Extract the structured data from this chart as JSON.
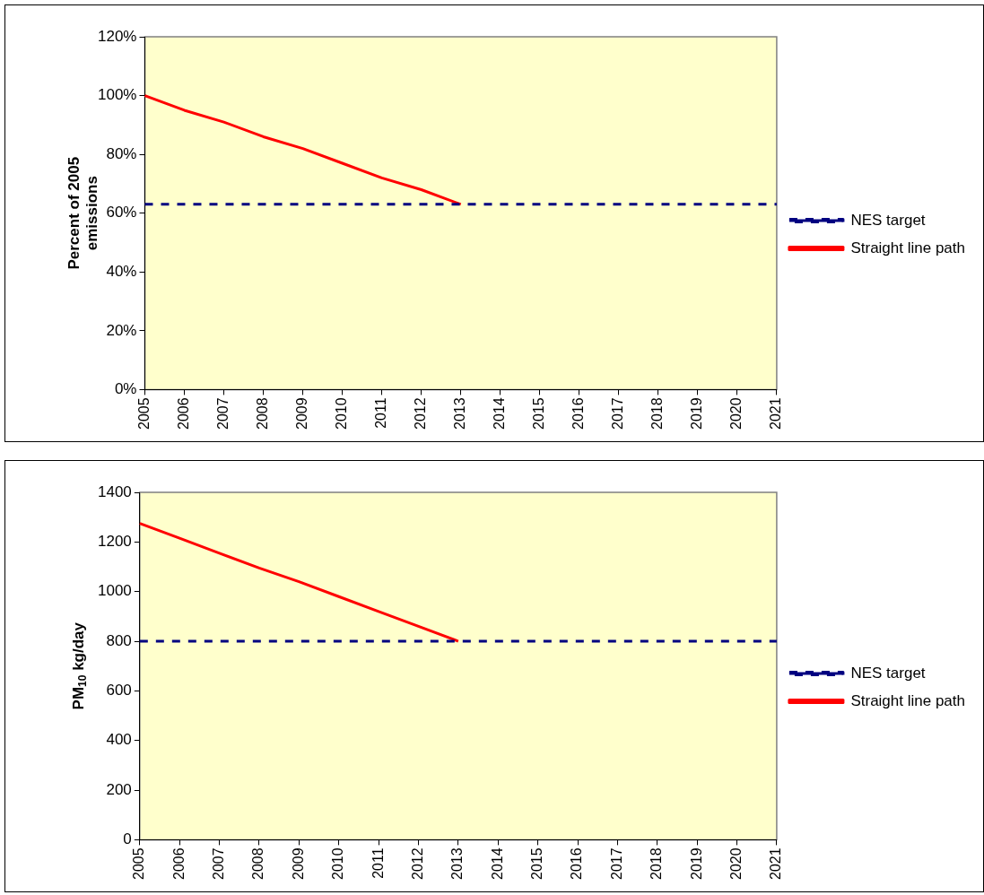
{
  "chart_data": [
    {
      "type": "line",
      "ylabel": "Percent of 2005 emissions",
      "categories": [
        "2005",
        "2006",
        "2007",
        "2008",
        "2009",
        "2010",
        "2011",
        "2012",
        "2013",
        "2014",
        "2015",
        "2016",
        "2017",
        "2018",
        "2019",
        "2020",
        "2021"
      ],
      "series": [
        {
          "name": "NES target",
          "color": "#000080",
          "line_style": "dashed",
          "values": [
            63,
            63,
            63,
            63,
            63,
            63,
            63,
            63,
            63,
            63,
            63,
            63,
            63,
            63,
            63,
            63,
            63
          ]
        },
        {
          "name": "Straight line path",
          "color": "#ff0000",
          "line_style": "solid",
          "values": [
            100,
            95,
            91,
            86,
            82,
            77,
            72,
            68,
            63,
            null,
            null,
            null,
            null,
            null,
            null,
            null,
            null
          ]
        }
      ],
      "ylim": [
        0,
        120
      ],
      "yticks": [
        {
          "value": 0,
          "label": "0%"
        },
        {
          "value": 20,
          "label": "20%"
        },
        {
          "value": 40,
          "label": "40%"
        },
        {
          "value": 60,
          "label": "60%"
        },
        {
          "value": 80,
          "label": "80%"
        },
        {
          "value": 100,
          "label": "100%"
        },
        {
          "value": 120,
          "label": "120%"
        }
      ],
      "grid": false,
      "legend": "right",
      "marker": "none"
    },
    {
      "type": "line",
      "ylabel": "PM$_{10}$ kg/day",
      "categories": [
        "2005",
        "2006",
        "2007",
        "2008",
        "2009",
        "2010",
        "2011",
        "2012",
        "2013",
        "2014",
        "2015",
        "2016",
        "2017",
        "2018",
        "2019",
        "2020",
        "2021"
      ],
      "series": [
        {
          "name": "NES target",
          "color": "#000080",
          "line_style": "dashed",
          "values": [
            800,
            800,
            800,
            800,
            800,
            800,
            800,
            800,
            800,
            800,
            800,
            800,
            800,
            800,
            800,
            800,
            800
          ]
        },
        {
          "name": "Straight line path",
          "color": "#ff0000",
          "line_style": "solid",
          "values": [
            1275,
            1215,
            1155,
            1095,
            1040,
            980,
            920,
            860,
            800,
            null,
            null,
            null,
            null,
            null,
            null,
            null,
            null
          ]
        }
      ],
      "ylim": [
        0,
        1400
      ],
      "yticks": [
        0,
        200,
        400,
        600,
        800,
        1000,
        1200,
        1400
      ],
      "grid": false,
      "legend": "right",
      "marker": "none"
    }
  ]
}
